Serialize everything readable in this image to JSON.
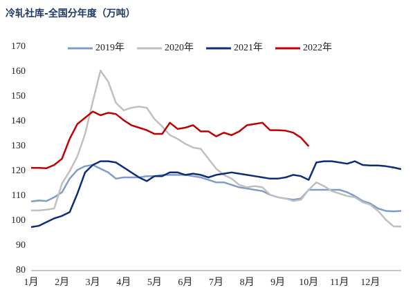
{
  "chart_data": {
    "type": "line",
    "title": "冷轧社库-全国分年度（万吨）",
    "categories": [
      "1月",
      null,
      null,
      null,
      "2月",
      null,
      null,
      null,
      "3月",
      null,
      null,
      null,
      "4月",
      null,
      null,
      null,
      "5月",
      null,
      null,
      null,
      "6月",
      null,
      null,
      null,
      "7月",
      null,
      null,
      null,
      "8月",
      null,
      null,
      null,
      "9月",
      null,
      null,
      null,
      "10月",
      null,
      null,
      null,
      "11月",
      null,
      null,
      null,
      "12月",
      null,
      null,
      null,
      null
    ],
    "series": [
      {
        "name": "2019年",
        "color": "#7f9cc7",
        "values": [
          107.8,
          108.2,
          108,
          109.5,
          111.5,
          117,
          120.5,
          122,
          122.5,
          121,
          119.5,
          117,
          117.5,
          117.5,
          117.5,
          118,
          118,
          118.5,
          118.5,
          118.5,
          118.5,
          118,
          117.5,
          116.5,
          115.5,
          115.5,
          114.5,
          113.5,
          113,
          112.5,
          112,
          110.5,
          109.5,
          109,
          108.5,
          109,
          112.5,
          112.5,
          112.5,
          112.5,
          112.5,
          111.5,
          110,
          108,
          107,
          105,
          104,
          103.8,
          104
        ]
      },
      {
        "name": "2020年",
        "color": "#bfbfbf",
        "values": [
          104.2,
          104.2,
          104.5,
          105,
          115,
          120,
          126,
          135,
          148,
          160.5,
          156,
          147.5,
          144.5,
          145.5,
          146,
          145.5,
          141,
          138,
          134.5,
          133,
          131,
          129.5,
          129,
          125,
          121,
          118.5,
          117,
          114.5,
          113.5,
          114,
          113.5,
          110.5,
          109.5,
          109,
          108,
          108.5,
          112.5,
          115.5,
          114,
          112,
          111,
          110,
          109.5,
          107.5,
          106.5,
          104,
          100.5,
          97.8,
          97.7
        ]
      },
      {
        "name": "2021年",
        "color": "#0b2c7a",
        "values": [
          97.5,
          98,
          99.5,
          101,
          102,
          103.5,
          111,
          119.5,
          122.5,
          124,
          124,
          123.5,
          121.5,
          119.5,
          117.5,
          116,
          118,
          118,
          119.5,
          119.5,
          118.5,
          119,
          118.5,
          117.5,
          118.5,
          119,
          119.5,
          119,
          118.5,
          118,
          117.5,
          117,
          117,
          117.5,
          118.5,
          118,
          116.5,
          123.5,
          124,
          124,
          123.5,
          123,
          124,
          122.5,
          122.3,
          122.3,
          122,
          121.5,
          120.8
        ]
      },
      {
        "name": "2022年",
        "color": "#c00000",
        "values": [
          121.3,
          121.3,
          121.2,
          122.5,
          125,
          133,
          139,
          141.5,
          144,
          142.5,
          143.5,
          143,
          140.5,
          138.5,
          137.5,
          136.5,
          135,
          135,
          139.5,
          137,
          137.5,
          138.5,
          136,
          136,
          134,
          135.5,
          134.5,
          136,
          138.5,
          139,
          139.5,
          136.5,
          136.5,
          136.3,
          135.5,
          133.5,
          130,
          null,
          null,
          null,
          null,
          null,
          null,
          null,
          null,
          null,
          null,
          null,
          null
        ]
      }
    ],
    "ylim": [
      80,
      170
    ],
    "yticks": [
      80,
      90,
      100,
      110,
      120,
      130,
      140,
      150,
      160,
      170
    ],
    "grid": false,
    "legend": "top"
  }
}
